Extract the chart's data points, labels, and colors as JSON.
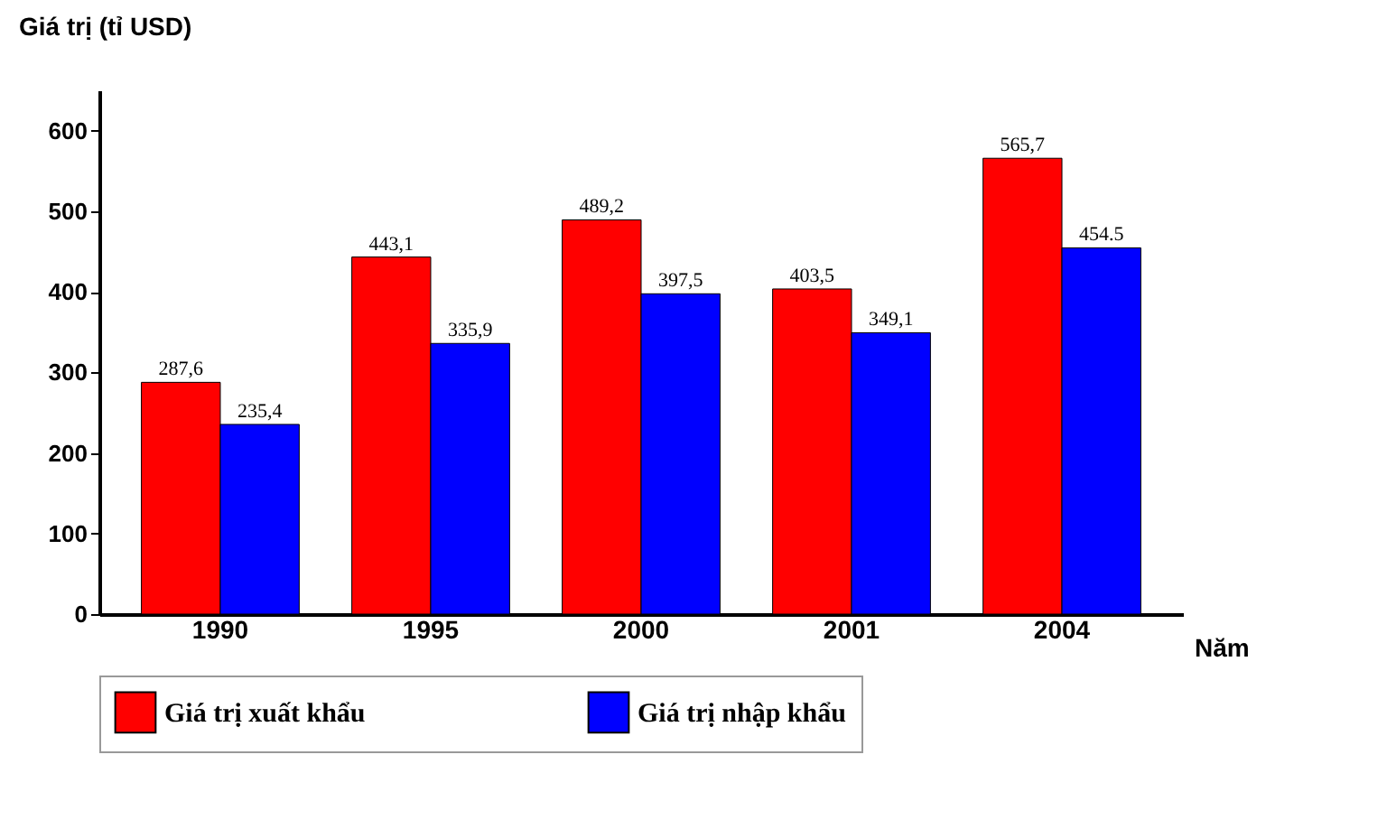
{
  "chart_data": {
    "type": "bar",
    "ylabel": "Giá trị (tỉ USD)",
    "xlabel": "Năm",
    "categories": [
      "1990",
      "1995",
      "2000",
      "2001",
      "2004"
    ],
    "series": [
      {
        "name": "Giá trị xuất khẩu",
        "color": "#ff0000",
        "values": [
          287.6,
          443.1,
          489.2,
          403.5,
          565.7
        ],
        "value_labels": [
          "287,6",
          "443,1",
          "489,2",
          "403,5",
          "565,7"
        ]
      },
      {
        "name": "Giá trị nhập khẩu",
        "color": "#0000ff",
        "values": [
          235.4,
          335.9,
          397.5,
          349.1,
          454.5
        ],
        "value_labels": [
          "235,4",
          "335,9",
          "397,5",
          "349,1",
          "454.5"
        ]
      }
    ],
    "ylim": [
      0,
      650
    ],
    "yticks": [
      0,
      100,
      200,
      300,
      400,
      500,
      600
    ],
    "grid": false,
    "legend": "bottom"
  }
}
